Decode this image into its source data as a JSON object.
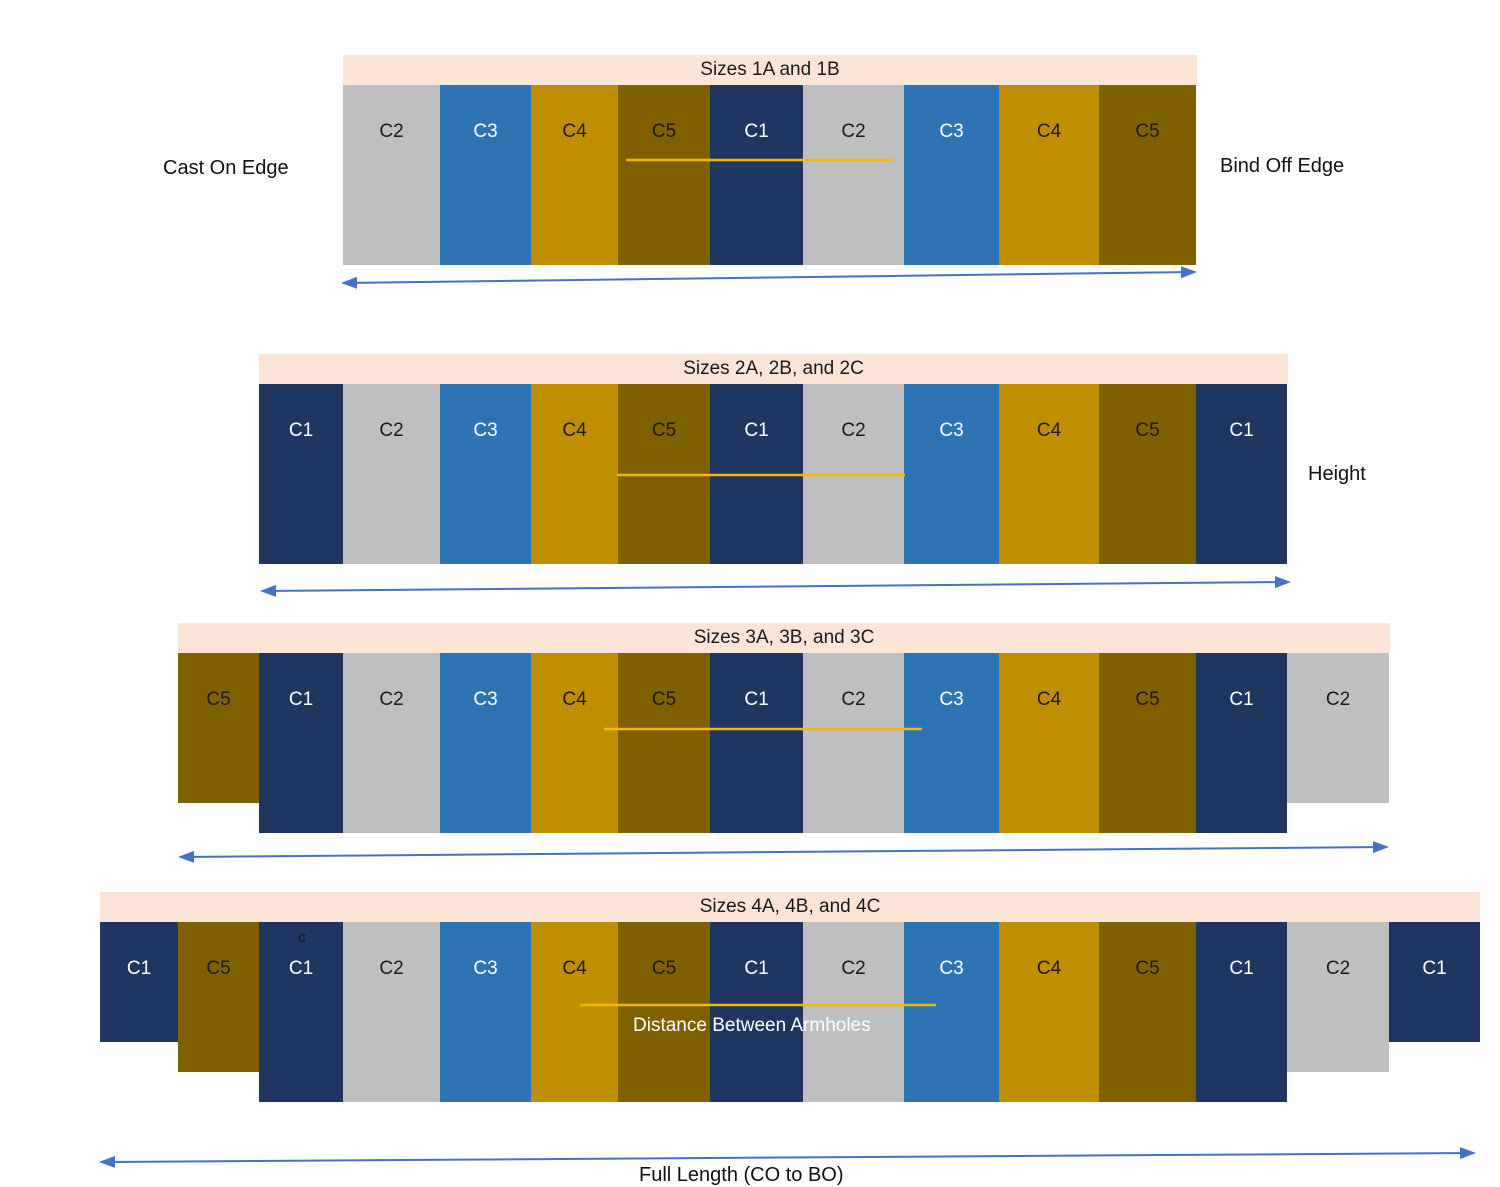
{
  "colors": {
    "C1": "#1f3660",
    "C2": "#bfbfbf",
    "C3": "#2e74b5",
    "C4": "#bf8f00",
    "C5": "#7f6000",
    "header_bg": "#fce4d6",
    "guide_line": "#f5b800",
    "arrow": "#4472c4"
  },
  "bands": [
    {
      "title": "Sizes 1A and 1B",
      "blocks": [
        "C2",
        "C3",
        "C4",
        "C5",
        "C1",
        "C2",
        "C3",
        "C4",
        "C5"
      ]
    },
    {
      "title": "Sizes 2A, 2B, and 2C",
      "blocks": [
        "C1",
        "C2",
        "C3",
        "C4",
        "C5",
        "C1",
        "C2",
        "C3",
        "C4",
        "C5",
        "C1"
      ]
    },
    {
      "title": "Sizes 3A, 3B, and 3C",
      "blocks": [
        "C5",
        "C1",
        "C2",
        "C3",
        "C4",
        "C5",
        "C1",
        "C2",
        "C3",
        "C4",
        "C5",
        "C1",
        "C2"
      ]
    },
    {
      "title": "Sizes 4A, 4B, and 4C",
      "blocks": [
        "C1",
        "C5",
        "C1",
        "C2",
        "C3",
        "C4",
        "C5",
        "C1",
        "C2",
        "C3",
        "C4",
        "C5",
        "C1",
        "C2",
        "C1"
      ]
    }
  ],
  "labels": {
    "cast_on": "Cast On Edge",
    "bind_off": "Bind Off Edge",
    "height": "Height",
    "armholes": "Distance Between Armholes",
    "full_length": "Full Length (CO to BO)",
    "stray_c": "c"
  }
}
